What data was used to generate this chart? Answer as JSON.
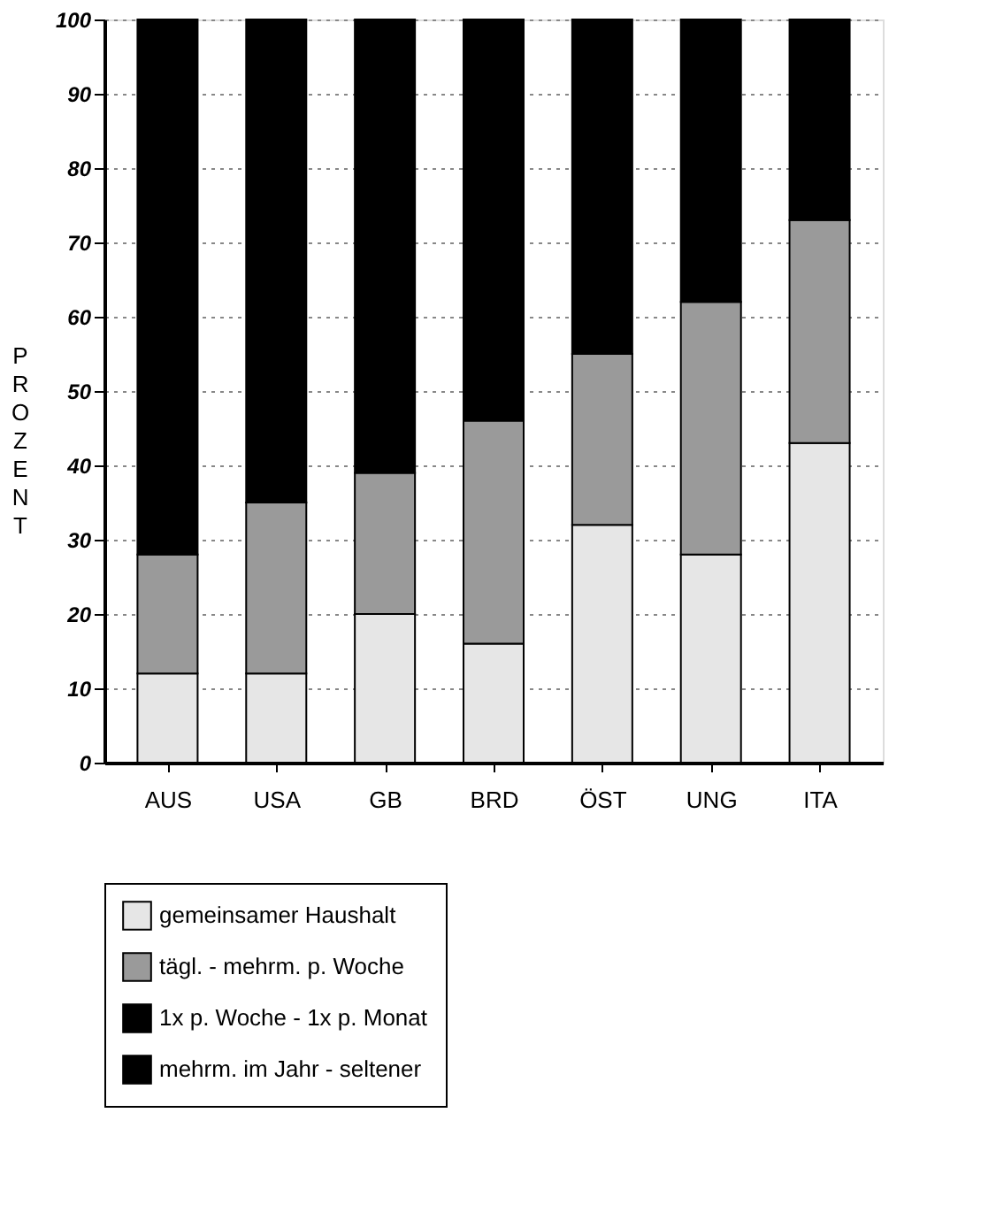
{
  "chart_data": {
    "type": "bar",
    "stacked": true,
    "ylabel": "PROZENT",
    "categories": [
      "AUS",
      "USA",
      "GB",
      "BRD",
      "ÖST",
      "UNG",
      "ITA"
    ],
    "series": [
      {
        "name": "gemeinsamer Haushalt",
        "color": "#e6e6e6",
        "values": [
          12,
          12,
          20,
          16,
          32,
          28,
          43
        ]
      },
      {
        "name": "tägl. - mehrm. p. Woche",
        "color": "#9a9a9a",
        "values": [
          16,
          23,
          19,
          30,
          23,
          34,
          30
        ]
      },
      {
        "name": "1x p. Woche - 1x p. Monat",
        "color": "#000000",
        "values": [
          72,
          65,
          61,
          54,
          45,
          38,
          27
        ]
      },
      {
        "name": "mehrm. im Jahr - seltener",
        "color": "#000000",
        "values": [
          null,
          null,
          null,
          null,
          null,
          null,
          null
        ]
      }
    ],
    "ylim": [
      0,
      100
    ],
    "yticks": [
      0,
      10,
      20,
      30,
      40,
      50,
      60,
      70,
      80,
      90,
      100
    ],
    "grid": "y",
    "legend": "bottom"
  }
}
